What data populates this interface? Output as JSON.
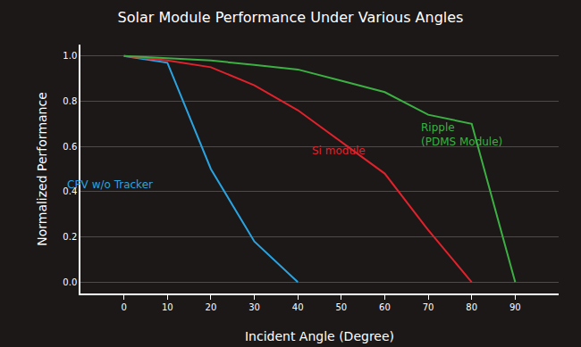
{
  "chart_data": {
    "type": "line",
    "title": "Solar Module Performance Under Various Angles",
    "x_label": "Incident Angle (Degree)",
    "y_label": "Normalized Performance",
    "x": [
      0,
      10,
      20,
      30,
      40,
      50,
      60,
      70,
      80,
      90
    ],
    "series": [
      {
        "name": "CPV w/o Tracker",
        "color": "#2aa3e0",
        "values": [
          1.0,
          0.97,
          0.5,
          0.18,
          0.0,
          null,
          null,
          null,
          null,
          null
        ]
      },
      {
        "name": "Si module",
        "color": "#e0222c",
        "values": [
          1.0,
          0.98,
          0.95,
          0.87,
          0.76,
          0.62,
          0.48,
          0.23,
          0.0,
          null
        ]
      },
      {
        "name": "Ripple\n(PDMS Module)",
        "color": "#3cb043",
        "values": [
          1.0,
          0.99,
          0.98,
          0.96,
          0.94,
          0.89,
          0.84,
          0.74,
          0.7,
          0.0
        ]
      }
    ],
    "xlim": [
      -10,
      100
    ],
    "ylim": [
      -0.05,
      1.05
    ],
    "xticks": [
      0,
      10,
      20,
      30,
      40,
      50,
      60,
      70,
      80,
      90
    ],
    "yticks": [
      {
        "value": 0,
        "label": "0.0"
      },
      0.2,
      0.4,
      0.6,
      0.8,
      {
        "value": 1,
        "label": "1.0"
      }
    ],
    "grid": true
  }
}
